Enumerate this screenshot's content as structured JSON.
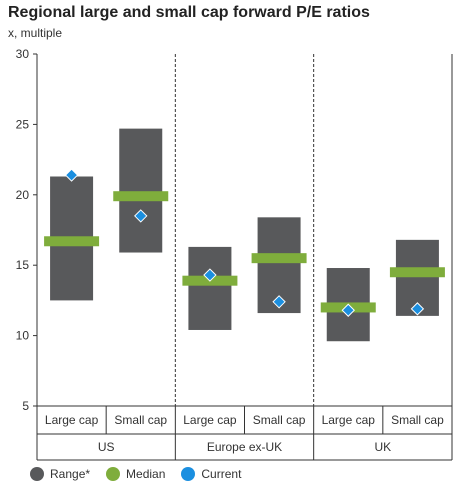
{
  "chart_data": {
    "type": "range-bar",
    "title": "Regional large and small cap forward P/E ratios",
    "ylabel": "x, multiple",
    "ylim": [
      5,
      30
    ],
    "yticks": [
      5,
      10,
      15,
      20,
      25,
      30
    ],
    "groups": [
      {
        "name": "US",
        "categories": [
          {
            "label": "Large cap",
            "min": 12.5,
            "max": 21.3,
            "median": 16.7,
            "current": 21.4
          },
          {
            "label": "Small cap",
            "min": 15.9,
            "max": 24.7,
            "median": 19.9,
            "current": 18.5
          }
        ]
      },
      {
        "name": "Europe ex-UK",
        "categories": [
          {
            "label": "Large cap",
            "min": 10.4,
            "max": 16.3,
            "median": 13.9,
            "current": 14.3
          },
          {
            "label": "Small cap",
            "min": 11.6,
            "max": 18.4,
            "median": 15.5,
            "current": 12.4
          }
        ]
      },
      {
        "name": "UK",
        "categories": [
          {
            "label": "Large cap",
            "min": 9.6,
            "max": 14.8,
            "median": 12.0,
            "current": 11.8
          },
          {
            "label": "Small cap",
            "min": 11.4,
            "max": 16.8,
            "median": 14.5,
            "current": 11.9
          }
        ]
      }
    ],
    "legend": [
      {
        "label": "Range*",
        "color": "#58595b"
      },
      {
        "label": "Median",
        "color": "#7fad3c"
      },
      {
        "label": "Current",
        "color": "#1b8fe0"
      }
    ],
    "colors": {
      "range": "#58595b",
      "median": "#7fad3c",
      "current": "#1b8fe0"
    },
    "legend_position": "bottom-left"
  }
}
